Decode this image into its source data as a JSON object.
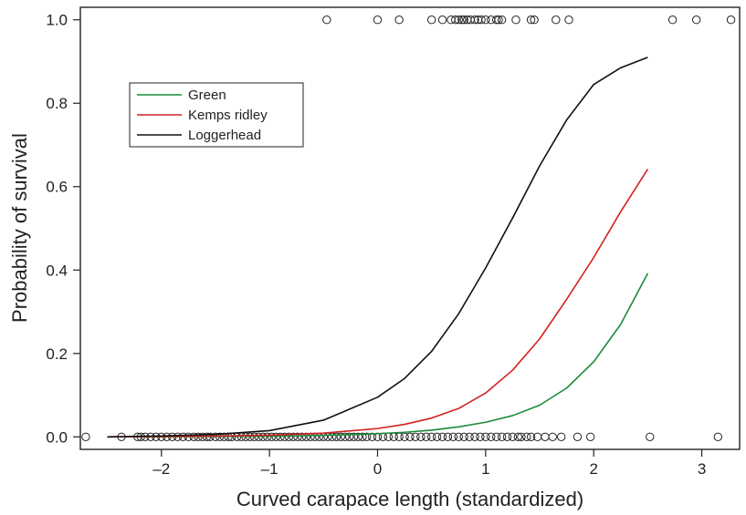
{
  "chart_data": {
    "type": "scatter",
    "title": "",
    "xlabel": "Curved carapace length (standardized)",
    "ylabel": "Probability of survival",
    "xlim": [
      -2.75,
      3.35
    ],
    "ylim": [
      -0.03,
      1.03
    ],
    "xticks": [
      -2,
      -1,
      0,
      1,
      2,
      3
    ],
    "xtick_labels": [
      "–2",
      "–1",
      "0",
      "1",
      "2",
      "3"
    ],
    "yticks": [
      0.0,
      0.2,
      0.4,
      0.6,
      0.8,
      1.0
    ],
    "ytick_labels": [
      "0.0",
      "0.2",
      "0.4",
      "0.6",
      "0.8",
      "1.0"
    ],
    "grid": false,
    "legend_position": "top-left",
    "series": [
      {
        "name": "Green",
        "kind": "line",
        "color": "#1a8a3a",
        "x": [
          -2.5,
          -2.0,
          -1.5,
          -1.0,
          -0.5,
          0.0,
          0.25,
          0.5,
          0.75,
          1.0,
          1.25,
          1.5,
          1.75,
          2.0,
          2.25,
          2.5
        ],
        "y": [
          0.0,
          0.0003,
          0.0007,
          0.0016,
          0.0036,
          0.0075,
          0.011,
          0.016,
          0.024,
          0.035,
          0.051,
          0.076,
          0.117,
          0.18,
          0.27,
          0.392
        ]
      },
      {
        "name": "Kemps ridley",
        "kind": "line",
        "color": "#d42020",
        "x": [
          -2.5,
          -2.0,
          -1.5,
          -1.0,
          -0.5,
          0.0,
          0.25,
          0.5,
          0.75,
          1.0,
          1.25,
          1.5,
          1.75,
          2.0,
          2.25,
          2.5
        ],
        "y": [
          0.0,
          0.0008,
          0.0018,
          0.004,
          0.009,
          0.02,
          0.03,
          0.045,
          0.068,
          0.105,
          0.16,
          0.235,
          0.33,
          0.43,
          0.54,
          0.642
        ]
      },
      {
        "name": "Loggerhead",
        "kind": "line",
        "color": "#111111",
        "x": [
          -2.5,
          -2.0,
          -1.5,
          -1.0,
          -0.5,
          0.0,
          0.25,
          0.5,
          0.75,
          1.0,
          1.25,
          1.5,
          1.75,
          2.0,
          2.25,
          2.5
        ],
        "y": [
          0.0,
          0.002,
          0.006,
          0.015,
          0.04,
          0.095,
          0.14,
          0.205,
          0.295,
          0.405,
          0.525,
          0.65,
          0.76,
          0.845,
          0.885,
          0.91
        ]
      }
    ],
    "observations": {
      "marker": "open-circle",
      "survived_y": 1,
      "survived_x": [
        -0.47,
        0.0,
        0.2,
        0.5,
        0.6,
        0.68,
        0.72,
        0.75,
        0.78,
        0.8,
        0.83,
        0.86,
        0.9,
        0.93,
        0.96,
        1.0,
        1.05,
        1.1,
        1.12,
        1.15,
        1.28,
        1.42,
        1.45,
        1.65,
        1.77,
        2.73,
        2.95,
        3.27
      ],
      "died_y": 0,
      "died_x": [
        -2.7,
        -2.37,
        -2.22,
        -2.19,
        -2.15,
        -2.1,
        -2.05,
        -2.0,
        -1.95,
        -1.9,
        -1.85,
        -1.8,
        -1.75,
        -1.7,
        -1.66,
        -1.62,
        -1.58,
        -1.55,
        -1.5,
        -1.46,
        -1.42,
        -1.38,
        -1.35,
        -1.3,
        -1.26,
        -1.22,
        -1.18,
        -1.14,
        -1.1,
        -1.06,
        -1.02,
        -0.98,
        -0.94,
        -0.9,
        -0.86,
        -0.82,
        -0.78,
        -0.74,
        -0.7,
        -0.66,
        -0.62,
        -0.58,
        -0.54,
        -0.5,
        -0.46,
        -0.42,
        -0.38,
        -0.34,
        -0.3,
        -0.26,
        -0.22,
        -0.18,
        -0.14,
        -0.1,
        -0.05,
        0.0,
        0.05,
        0.1,
        0.15,
        0.2,
        0.25,
        0.3,
        0.35,
        0.4,
        0.45,
        0.5,
        0.55,
        0.6,
        0.65,
        0.7,
        0.75,
        0.8,
        0.85,
        0.9,
        0.95,
        1.0,
        1.05,
        1.1,
        1.15,
        1.2,
        1.25,
        1.3,
        1.33,
        1.38,
        1.42,
        1.48,
        1.55,
        1.62,
        1.7,
        1.85,
        1.97,
        2.52,
        3.15
      ]
    }
  }
}
